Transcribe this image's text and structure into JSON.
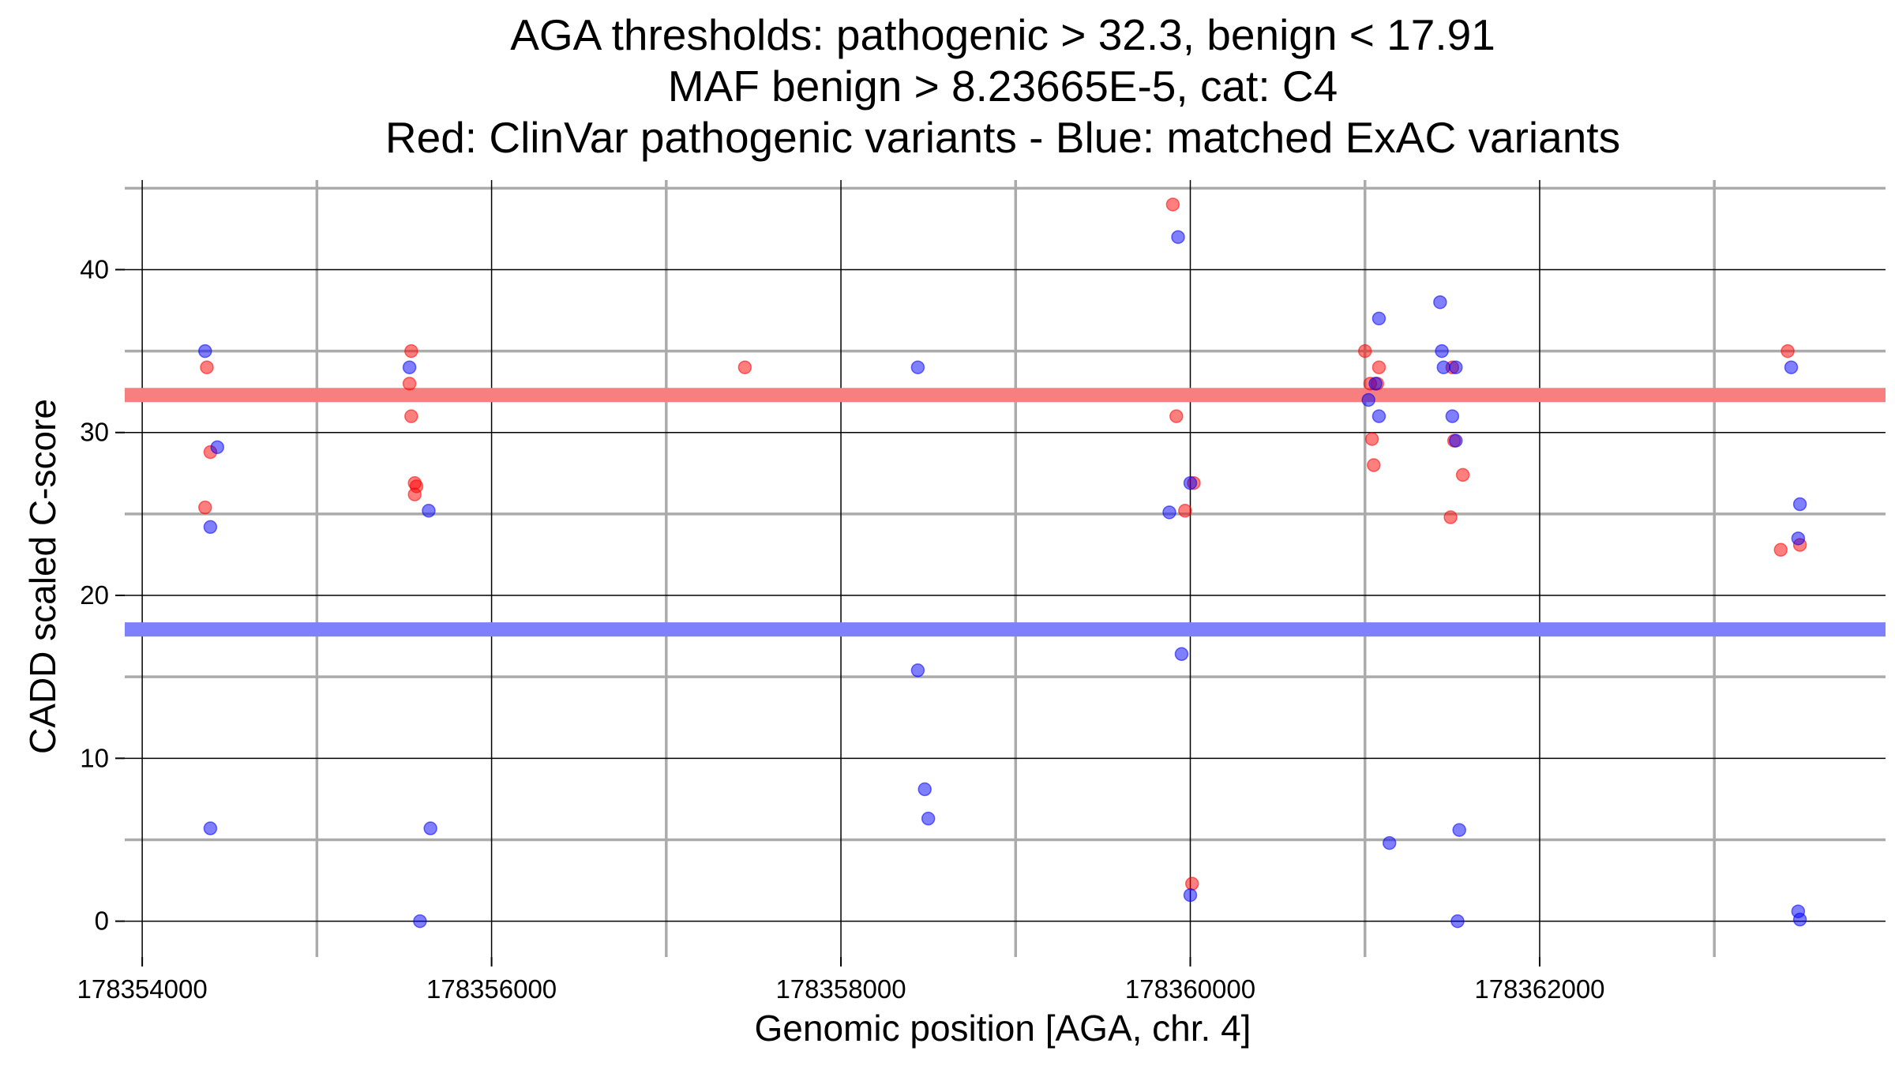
{
  "chart_data": {
    "type": "scatter",
    "title_lines": [
      "AGA thresholds: pathogenic > 32.3, benign < 17.91",
      "MAF benign > 8.23665E-5, cat: C4",
      "Red: ClinVar pathogenic variants - Blue: matched ExAC variants"
    ],
    "xlabel": "Genomic position [AGA, chr. 4]",
    "ylabel": "CADD scaled C-score",
    "xlim": [
      178353900,
      178363980
    ],
    "ylim": [
      -2.2,
      45.5
    ],
    "x_ticks": [
      178354000,
      178356000,
      178358000,
      178360000,
      178362000
    ],
    "x_minor_ticks": [
      178355000,
      178357000,
      178359000,
      178361000,
      178363000
    ],
    "y_ticks": [
      0,
      10,
      20,
      30,
      40
    ],
    "y_minor_ticks": [
      5,
      15,
      25,
      35,
      45
    ],
    "thresholds": [
      {
        "name": "pathogenic",
        "value": 32.3,
        "color": "#f87f80"
      },
      {
        "name": "benign",
        "value": 17.91,
        "color": "#7f80fb"
      }
    ],
    "series": [
      {
        "name": "ClinVar pathogenic variants",
        "color": "#ff0000",
        "points": [
          [
            178354370,
            34.0
          ],
          [
            178354390,
            28.8
          ],
          [
            178354360,
            25.4
          ],
          [
            178355540,
            35.0
          ],
          [
            178355530,
            33.0
          ],
          [
            178355540,
            31.0
          ],
          [
            178355560,
            26.9
          ],
          [
            178355570,
            26.7
          ],
          [
            178355560,
            26.2
          ],
          [
            178357450,
            34.0
          ],
          [
            178359900,
            44.0
          ],
          [
            178359920,
            31.0
          ],
          [
            178360020,
            26.9
          ],
          [
            178359970,
            25.2
          ],
          [
            178360010,
            2.3
          ],
          [
            178361000,
            35.0
          ],
          [
            178361030,
            33.0
          ],
          [
            178361080,
            34.0
          ],
          [
            178361070,
            33.0
          ],
          [
            178361040,
            29.6
          ],
          [
            178361050,
            28.0
          ],
          [
            178361500,
            34.0
          ],
          [
            178361510,
            29.5
          ],
          [
            178361560,
            27.4
          ],
          [
            178361490,
            24.8
          ],
          [
            178363420,
            35.0
          ],
          [
            178363380,
            22.8
          ],
          [
            178363490,
            23.1
          ]
        ]
      },
      {
        "name": "matched ExAC variants",
        "color": "#0000ff",
        "points": [
          [
            178354360,
            35.0
          ],
          [
            178354430,
            29.1
          ],
          [
            178354390,
            24.2
          ],
          [
            178354390,
            5.7
          ],
          [
            178355530,
            34.0
          ],
          [
            178355640,
            25.2
          ],
          [
            178355650,
            5.7
          ],
          [
            178355590,
            0.0
          ],
          [
            178358440,
            34.0
          ],
          [
            178358440,
            15.4
          ],
          [
            178358480,
            8.1
          ],
          [
            178358500,
            6.3
          ],
          [
            178359930,
            42.0
          ],
          [
            178359880,
            25.1
          ],
          [
            178360000,
            26.9
          ],
          [
            178359950,
            16.4
          ],
          [
            178360000,
            1.6
          ],
          [
            178361080,
            37.0
          ],
          [
            178361060,
            33.0
          ],
          [
            178361020,
            32.0
          ],
          [
            178361080,
            31.0
          ],
          [
            178361140,
            4.8
          ],
          [
            178361430,
            38.0
          ],
          [
            178361440,
            35.0
          ],
          [
            178361450,
            34.0
          ],
          [
            178361520,
            34.0
          ],
          [
            178361500,
            31.0
          ],
          [
            178361520,
            29.5
          ],
          [
            178361540,
            5.6
          ],
          [
            178361530,
            0.0
          ],
          [
            178363440,
            34.0
          ],
          [
            178363490,
            25.6
          ],
          [
            178363480,
            23.5
          ],
          [
            178363480,
            0.6
          ],
          [
            178363490,
            0.1
          ]
        ]
      }
    ]
  }
}
